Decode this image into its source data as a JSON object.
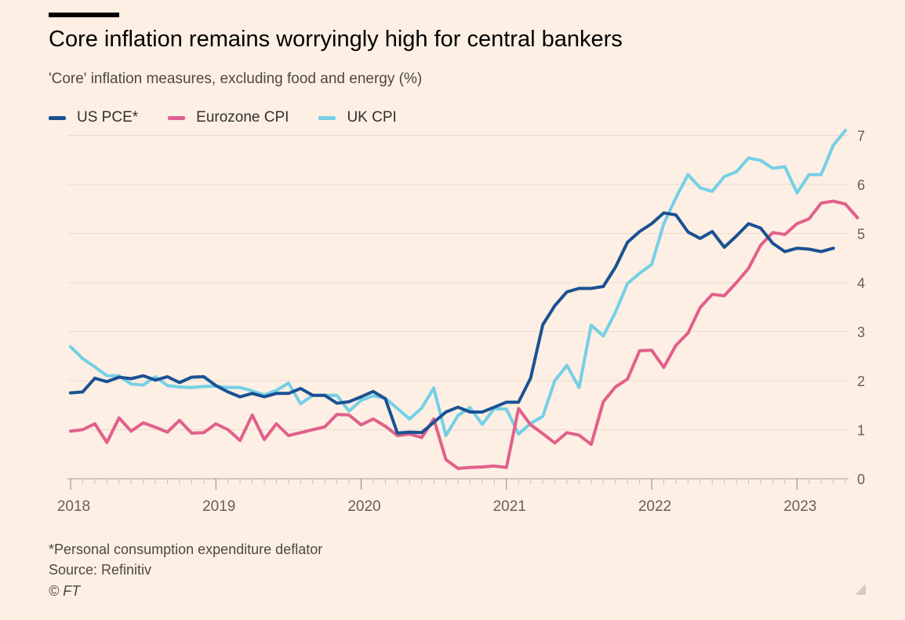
{
  "header": {
    "title": "Core inflation remains worryingly high for central bankers",
    "subtitle": "'Core' inflation measures, excluding food and energy (%)"
  },
  "footer": {
    "note": "*Personal consumption expenditure deflator",
    "source": "Source: Refinitiv",
    "copyright": "© FT"
  },
  "chart_data": {
    "type": "line",
    "title": "Core inflation remains worryingly high for central bankers",
    "subtitle": "'Core' inflation measures, excluding food and energy (%)",
    "x_ticks": [
      "2018",
      "2019",
      "2020",
      "2021",
      "2022",
      "2023"
    ],
    "y_ticks": [
      0,
      1,
      2,
      3,
      4,
      5,
      6,
      7
    ],
    "xlim": [
      "2018-01",
      "2023-05"
    ],
    "ylim": [
      0,
      7
    ],
    "y_axis_position": "right",
    "grid": true,
    "legend_position": "top-left",
    "series": [
      {
        "name": "US PCE*",
        "color": "#1a5193",
        "start": "2018-01",
        "values": [
          1.75,
          1.77,
          2.05,
          1.98,
          2.07,
          2.04,
          2.1,
          2.01,
          2.08,
          1.96,
          2.07,
          2.08,
          1.9,
          1.77,
          1.67,
          1.74,
          1.67,
          1.74,
          1.74,
          1.84,
          1.7,
          1.7,
          1.54,
          1.57,
          1.67,
          1.78,
          1.63,
          0.93,
          0.95,
          0.94,
          1.15,
          1.36,
          1.46,
          1.36,
          1.36,
          1.46,
          1.56,
          1.56,
          2.05,
          3.14,
          3.53,
          3.81,
          3.88,
          3.88,
          3.92,
          4.31,
          4.82,
          5.04,
          5.2,
          5.42,
          5.38,
          5.03,
          4.9,
          5.04,
          4.72,
          4.95,
          5.2,
          5.11,
          4.8,
          4.63,
          4.7,
          4.68,
          4.63,
          4.7
        ]
      },
      {
        "name": "Eurozone CPI",
        "color": "#e1608b",
        "start": "2018-01",
        "values": [
          0.97,
          1.0,
          1.12,
          0.74,
          1.24,
          0.97,
          1.14,
          1.05,
          0.95,
          1.19,
          0.93,
          0.94,
          1.12,
          1.0,
          0.78,
          1.3,
          0.8,
          1.12,
          0.88,
          0.94,
          1.0,
          1.06,
          1.31,
          1.3,
          1.1,
          1.22,
          1.07,
          0.88,
          0.91,
          0.84,
          1.22,
          0.39,
          0.21,
          0.23,
          0.24,
          0.26,
          0.23,
          1.43,
          1.1,
          0.92,
          0.73,
          0.94,
          0.89,
          0.7,
          1.57,
          1.87,
          2.03,
          2.61,
          2.62,
          2.27,
          2.72,
          2.97,
          3.49,
          3.76,
          3.73,
          4.0,
          4.29,
          4.76,
          5.02,
          4.98,
          5.2,
          5.3,
          5.62,
          5.66,
          5.6,
          5.32
        ]
      },
      {
        "name": "UK CPI",
        "color": "#74d0e6",
        "start": "2018-01",
        "values": [
          2.69,
          2.45,
          2.28,
          2.1,
          2.1,
          1.93,
          1.91,
          2.08,
          1.9,
          1.87,
          1.86,
          1.88,
          1.89,
          1.86,
          1.86,
          1.79,
          1.71,
          1.8,
          1.95,
          1.53,
          1.7,
          1.7,
          1.7,
          1.38,
          1.6,
          1.69,
          1.64,
          1.43,
          1.22,
          1.44,
          1.85,
          0.88,
          1.29,
          1.45,
          1.11,
          1.43,
          1.42,
          0.91,
          1.13,
          1.27,
          2.0,
          2.31,
          1.86,
          3.13,
          2.91,
          3.39,
          3.98,
          4.19,
          4.37,
          5.2,
          5.73,
          6.2,
          5.93,
          5.86,
          6.16,
          6.26,
          6.54,
          6.49,
          6.33,
          6.36,
          5.83,
          6.2,
          6.2,
          6.8,
          7.1
        ]
      }
    ]
  }
}
